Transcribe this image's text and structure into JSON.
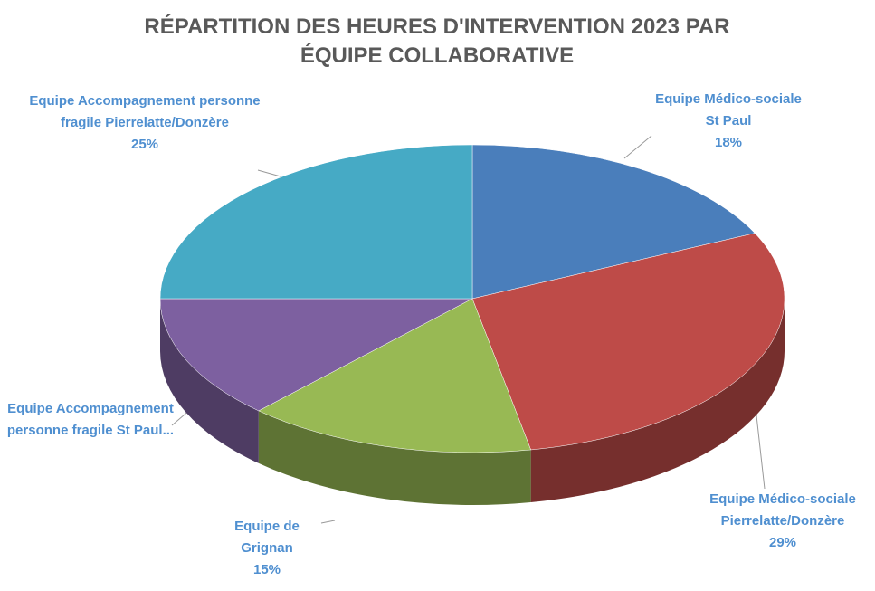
{
  "chart_data": {
    "type": "pie3d",
    "title": "RÉPARTITION DES HEURES D'INTERVENTION 2023 PAR ÉQUIPE COLLABORATIVE",
    "categories": [
      "Equipe Médico-sociale St Paul",
      "Equipe Médico-sociale Pierrelatte/Donzère",
      "Equipe de Grignan",
      "Equipe Accompagnement personne fragile St Paul...",
      "Equipe Accompagnement personne fragile Pierrelatte/Donzère"
    ],
    "values": [
      18,
      29,
      15,
      13,
      25
    ],
    "value_labels": [
      "18%",
      "29%",
      "15%",
      null,
      "25%"
    ],
    "colors": [
      "#4a7ebb",
      "#be4b48",
      "#98b954",
      "#7d60a0",
      "#46aac5"
    ]
  }
}
